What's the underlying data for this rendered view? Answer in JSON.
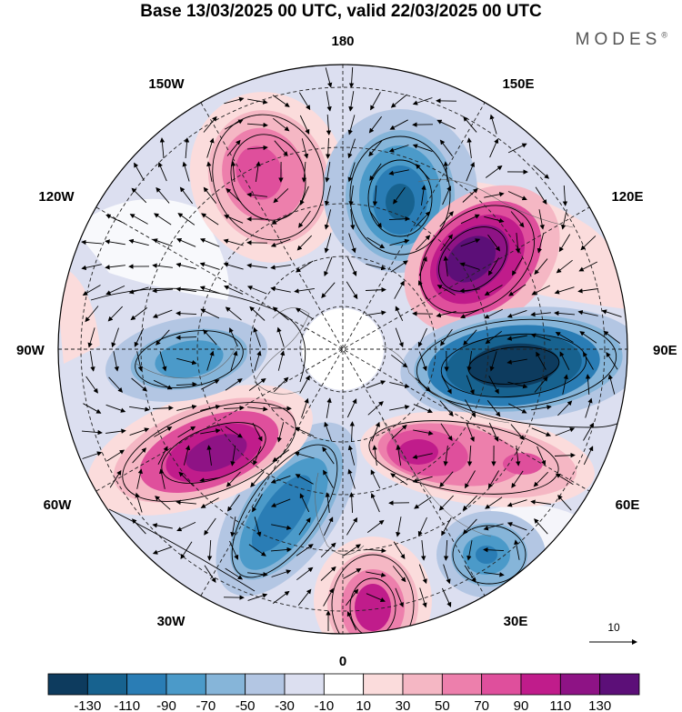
{
  "title": "Base 13/03/2025 00 UTC, valid 22/03/2025 00 UTC",
  "brand": "MODES",
  "brand_mark": "®",
  "longitude_labels": {
    "top": "180",
    "bottom": "0",
    "left": "90W",
    "right": "90E",
    "upper_left_1": "150W",
    "upper_left_2": "120W",
    "upper_right_1": "150E",
    "upper_right_2": "120E",
    "lower_left_1": "60W",
    "lower_left_2": "30W",
    "lower_right_1": "60E",
    "lower_right_2": "30E"
  },
  "vector_reference": {
    "label": "10"
  },
  "colorbar": {
    "levels": [
      "-130",
      "-110",
      "-90",
      "-70",
      "-50",
      "-30",
      "-10",
      "10",
      "30",
      "50",
      "70",
      "90",
      "110",
      "130"
    ],
    "colors": [
      "#0d3b5e",
      "#17628f",
      "#2a7db5",
      "#4b9ac9",
      "#86b5d9",
      "#b3c6e3",
      "#dcdff0",
      "#ffffff",
      "#fbdcdc",
      "#f5b7c4",
      "#ed7fac",
      "#df4f9c",
      "#c01c8b",
      "#8e1385",
      "#5c0f78"
    ]
  },
  "anomalies": [
    {
      "name": "anomaly-positive-1",
      "center": "150W-180 sector",
      "colors": [
        "#f5b7c4",
        "#ed7fac",
        "#df4f9c"
      ]
    },
    {
      "name": "anomaly-negative-1",
      "center": "near 160E",
      "colors": [
        "#86b5d9",
        "#4b9ac9",
        "#2a7db5",
        "#17628f"
      ]
    },
    {
      "name": "anomaly-positive-2",
      "center": "near 120E",
      "colors": [
        "#f5b7c4",
        "#df4f9c",
        "#8e1385",
        "#5c0f78"
      ]
    },
    {
      "name": "anomaly-negative-2",
      "center": "near 90E",
      "colors": [
        "#86b5d9",
        "#2a7db5",
        "#17628f",
        "#0d3b5e"
      ]
    },
    {
      "name": "anomaly-positive-3",
      "center": "near 60E",
      "colors": [
        "#f5b7c4",
        "#df4f9c",
        "#c01c8b"
      ]
    },
    {
      "name": "anomaly-negative-3",
      "center": "near 30E",
      "colors": [
        "#b3c6e3",
        "#4b9ac9",
        "#2a7db5"
      ]
    },
    {
      "name": "anomaly-positive-4",
      "center": "near 10E",
      "colors": [
        "#f5b7c4",
        "#df4f9c",
        "#c01c8b"
      ]
    },
    {
      "name": "anomaly-negative-4",
      "center": "near 30W",
      "colors": [
        "#86b5d9",
        "#4b9ac9",
        "#2a7db5"
      ]
    },
    {
      "name": "anomaly-positive-5",
      "center": "near 60W",
      "colors": [
        "#f5b7c4",
        "#df4f9c",
        "#c01c8b",
        "#8e1385"
      ]
    },
    {
      "name": "anomaly-negative-5",
      "center": "near 90W",
      "colors": [
        "#b3c6e3",
        "#86b5d9",
        "#4b9ac9"
      ]
    }
  ]
}
